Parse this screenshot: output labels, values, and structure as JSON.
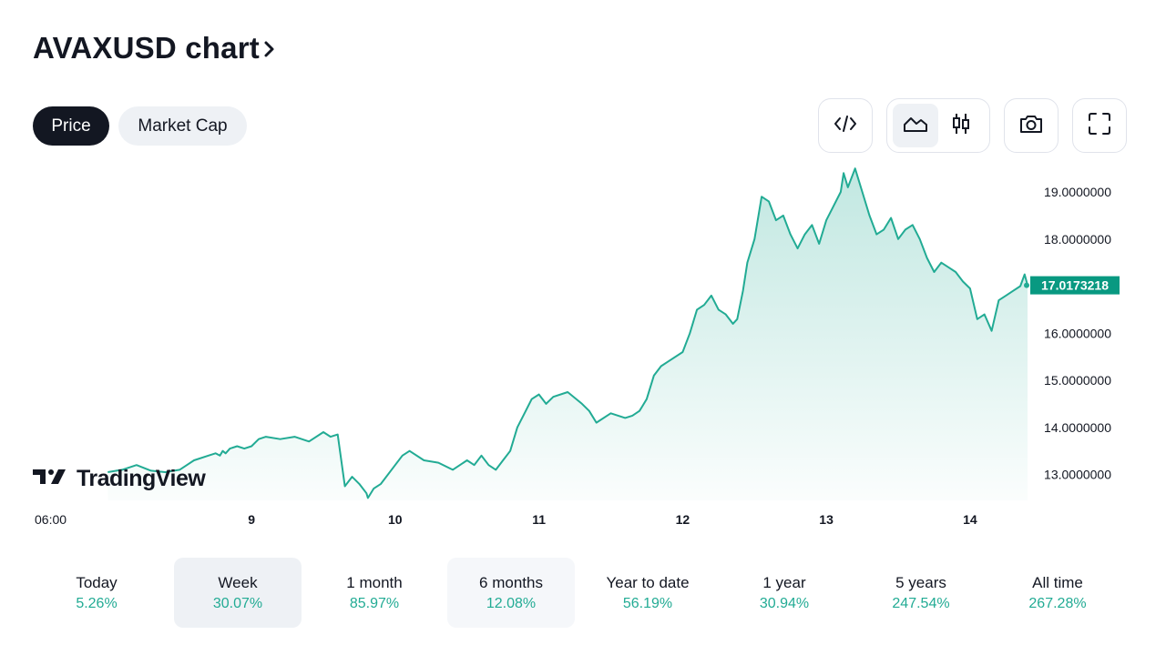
{
  "header": {
    "title": "AVAXUSD chart"
  },
  "tabs": [
    {
      "label": "Price",
      "active": true
    },
    {
      "label": "Market Cap",
      "active": false
    }
  ],
  "toolbar": {
    "embed_icon": "code-icon",
    "area_icon": "area-chart-icon",
    "candle_icon": "candlestick-icon",
    "snapshot_icon": "camera-icon",
    "fullscreen_icon": "fullscreen-icon"
  },
  "watermark": {
    "text": "TradingView"
  },
  "colors": {
    "line": "#22ab94",
    "price_label_bg": "#089981",
    "accent": "#131722"
  },
  "chart_data": {
    "type": "area",
    "symbol": "AVAXUSD",
    "x_ticks": [
      "06:00",
      "9",
      "10",
      "11",
      "12",
      "13",
      "14"
    ],
    "x_range_days": [
      7.25,
      14.4
    ],
    "y_ticks": [
      "19.0000000",
      "18.0000000",
      "17.0000000",
      "16.0000000",
      "15.0000000",
      "14.0000000",
      "13.0000000"
    ],
    "ylim": [
      12.45,
      19.6
    ],
    "last_price": 17.0173218,
    "last_price_label": "17.0173218",
    "series": [
      {
        "x": [
          8.0,
          8.1,
          8.2,
          8.3,
          8.4,
          8.5,
          8.6,
          8.7,
          8.75,
          8.78,
          8.8,
          8.82,
          8.85,
          8.9,
          8.95,
          9.0,
          9.05,
          9.1,
          9.2,
          9.3,
          9.4,
          9.5,
          9.55,
          9.6,
          9.65,
          9.7,
          9.75,
          9.8,
          9.81,
          9.85,
          9.9,
          10.0,
          10.05,
          10.1,
          10.2,
          10.3,
          10.4,
          10.5,
          10.55,
          10.6,
          10.65,
          10.7,
          10.75,
          10.8,
          10.85,
          10.9,
          10.95,
          11.0,
          11.05,
          11.1,
          11.2,
          11.3,
          11.35,
          11.4,
          11.5,
          11.6,
          11.65,
          11.7,
          11.72,
          11.75,
          11.8,
          11.85,
          11.9,
          12.0,
          12.05,
          12.1,
          12.15,
          12.2,
          12.25,
          12.3,
          12.35,
          12.38,
          12.42,
          12.45,
          12.5,
          12.55,
          12.6,
          12.65,
          12.7,
          12.75,
          12.8,
          12.85,
          12.9,
          12.95,
          13.0,
          13.05,
          13.1,
          13.12,
          13.15,
          13.2,
          13.25,
          13.3,
          13.35,
          13.4,
          13.45,
          13.5,
          13.55,
          13.6,
          13.65,
          13.7,
          13.75,
          13.8,
          13.85,
          13.9,
          13.95,
          14.0,
          14.05,
          14.1,
          14.15,
          14.2,
          14.25,
          14.3,
          14.35,
          14.38,
          14.4
        ],
        "y": [
          13.05,
          13.1,
          13.2,
          13.08,
          13.05,
          13.1,
          13.3,
          13.4,
          13.45,
          13.4,
          13.5,
          13.45,
          13.55,
          13.6,
          13.55,
          13.6,
          13.75,
          13.8,
          13.75,
          13.8,
          13.7,
          13.9,
          13.8,
          13.85,
          12.75,
          12.95,
          12.8,
          12.6,
          12.5,
          12.7,
          12.8,
          13.2,
          13.4,
          13.5,
          13.3,
          13.25,
          13.1,
          13.3,
          13.2,
          13.4,
          13.2,
          13.1,
          13.3,
          13.5,
          14.0,
          14.3,
          14.6,
          14.7,
          14.5,
          14.65,
          14.75,
          14.5,
          14.35,
          14.1,
          14.3,
          14.2,
          14.25,
          14.35,
          14.45,
          14.6,
          15.1,
          15.3,
          15.4,
          15.6,
          16.0,
          16.5,
          16.6,
          16.8,
          16.5,
          16.4,
          16.2,
          16.3,
          16.9,
          17.5,
          18.0,
          18.9,
          18.8,
          18.4,
          18.5,
          18.1,
          17.8,
          18.1,
          18.3,
          17.9,
          18.4,
          18.7,
          19.0,
          19.4,
          19.1,
          19.5,
          19.0,
          18.5,
          18.1,
          18.2,
          18.45,
          18.0,
          18.2,
          18.3,
          18.0,
          17.6,
          17.3,
          17.5,
          17.4,
          17.3,
          17.1,
          16.95,
          16.3,
          16.4,
          16.05,
          16.7,
          16.8,
          16.9,
          17.0,
          17.25,
          17.02
        ]
      }
    ],
    "grid": false
  },
  "periods": [
    {
      "label": "Today",
      "value": "5.26%"
    },
    {
      "label": "Week",
      "value": "30.07%"
    },
    {
      "label": "1 month",
      "value": "85.97%"
    },
    {
      "label": "6 months",
      "value": "12.08%"
    },
    {
      "label": "Year to date",
      "value": "56.19%"
    },
    {
      "label": "1 year",
      "value": "30.94%"
    },
    {
      "label": "5 years",
      "value": "247.54%"
    },
    {
      "label": "All time",
      "value": "267.28%"
    }
  ]
}
